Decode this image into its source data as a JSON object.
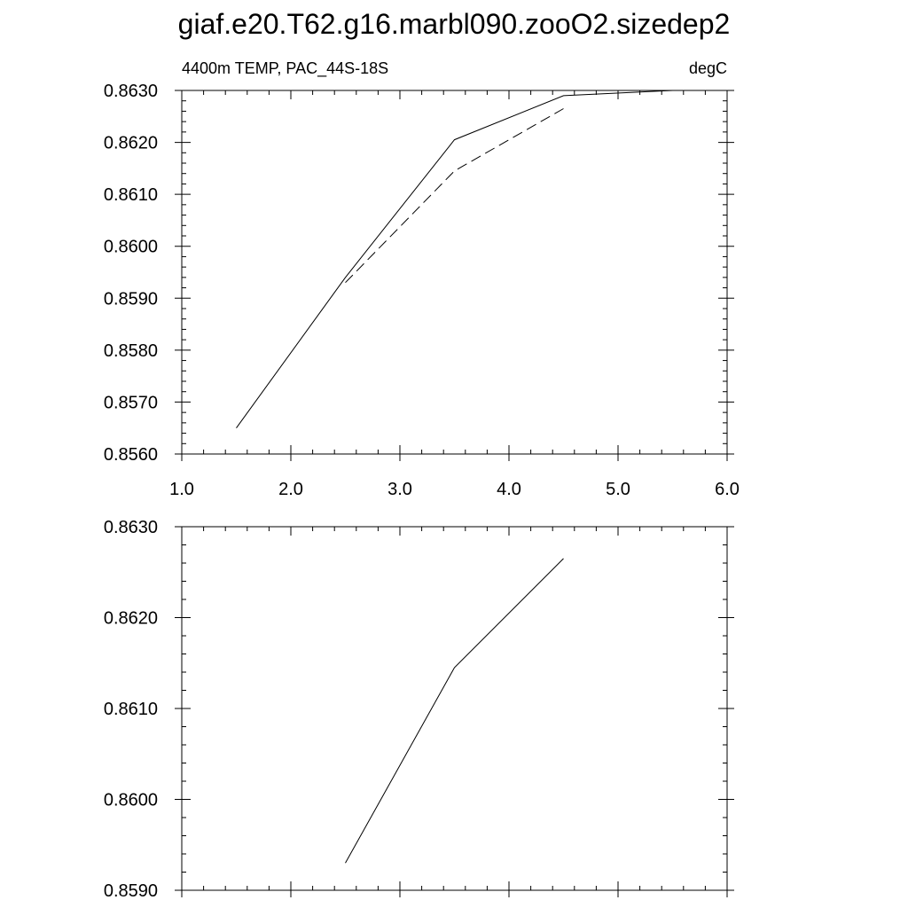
{
  "title": "giaf.e20.T62.g16.marbl090.zooO2.sizedep2",
  "chart_data": [
    {
      "type": "line",
      "left_label": "4400m TEMP, PAC_44S-18S",
      "right_label": "degC",
      "xlim": [
        1.0,
        6.0
      ],
      "ylim": [
        0.856,
        0.863
      ],
      "x_ticks": [
        "1.0",
        "2.0",
        "3.0",
        "4.0",
        "5.0",
        "6.0"
      ],
      "y_ticks": [
        "0.8560",
        "0.8570",
        "0.8580",
        "0.8590",
        "0.8600",
        "0.8610",
        "0.8620",
        "0.8630"
      ],
      "series": [
        {
          "style": "solid",
          "x": [
            1.5,
            2.5,
            3.5,
            4.5,
            5.5
          ],
          "y": [
            0.8565,
            0.8594,
            0.86205,
            0.8629,
            0.863
          ]
        },
        {
          "style": "dashed",
          "x": [
            2.5,
            3.5,
            4.5
          ],
          "y": [
            0.8593,
            0.86145,
            0.86265
          ]
        }
      ]
    },
    {
      "type": "line",
      "xlim": [
        1.0,
        6.0
      ],
      "ylim": [
        0.859,
        0.863
      ],
      "y_ticks": [
        "0.8590",
        "0.8600",
        "0.8610",
        "0.8620",
        "0.8630"
      ],
      "series": [
        {
          "style": "solid",
          "x": [
            2.5,
            3.5,
            4.5
          ],
          "y": [
            0.8593,
            0.86145,
            0.86265
          ]
        }
      ]
    }
  ]
}
